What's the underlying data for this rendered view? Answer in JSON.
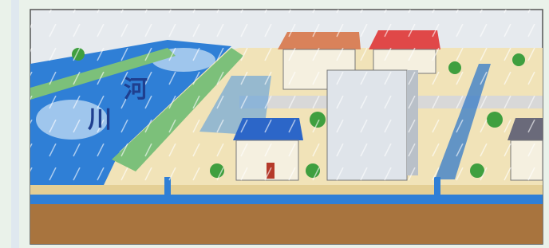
{
  "illustration": {
    "river_label": [
      "河",
      "川"
    ]
  }
}
